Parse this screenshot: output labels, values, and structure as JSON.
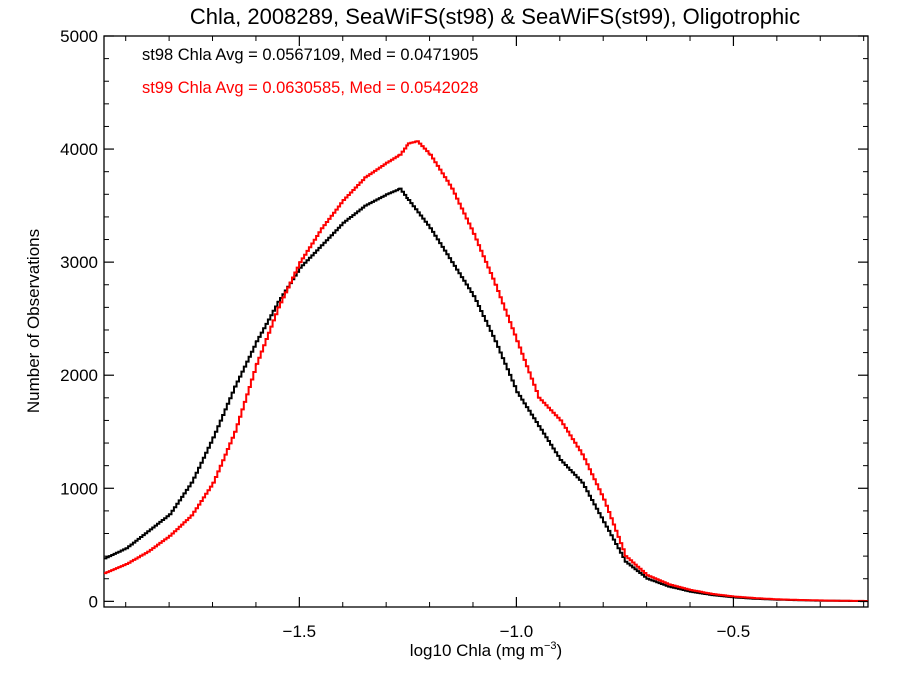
{
  "chart_data": {
    "type": "line",
    "style": "step-histogram",
    "title": "Chla, 2008289, SeaWiFS(st98) & SeaWiFS(st99), Oligotrophic",
    "xlabel": "log10 Chla (mg m",
    "xlabel_superscript": "−3",
    "xlabel_suffix": ")",
    "ylabel": "Number of Observations",
    "xlim": [
      -1.95,
      -0.19
    ],
    "ylim": [
      -50,
      5000
    ],
    "x_ticks": [
      -1.5,
      -1.0,
      -0.5
    ],
    "x_tick_labels": [
      "−1.5",
      "−1.0",
      "−0.5"
    ],
    "y_ticks": [
      0,
      1000,
      2000,
      3000,
      4000,
      5000
    ],
    "y_tick_labels": [
      "0",
      "1000",
      "2000",
      "3000",
      "4000",
      "5000"
    ],
    "grid": false,
    "annotations": [
      {
        "text": "st98 Chla Avg = 0.0567109, Med = 0.0471905",
        "color": "#000000"
      },
      {
        "text": "st99 Chla Avg = 0.0630585, Med = 0.0542028",
        "color": "#ff0000"
      }
    ],
    "series": [
      {
        "color": "#000000",
        "x": [
          -1.95,
          -1.9,
          -1.85,
          -1.8,
          -1.75,
          -1.7,
          -1.65,
          -1.6,
          -1.55,
          -1.5,
          -1.45,
          -1.4,
          -1.35,
          -1.3,
          -1.27,
          -1.25,
          -1.2,
          -1.15,
          -1.1,
          -1.05,
          -1.0,
          -0.95,
          -0.9,
          -0.85,
          -0.8,
          -0.75,
          -0.7,
          -0.65,
          -0.6,
          -0.55,
          -0.5,
          -0.45,
          -0.4,
          -0.35,
          -0.3,
          -0.25,
          -0.19
        ],
        "values": [
          380,
          470,
          620,
          770,
          1050,
          1450,
          1900,
          2300,
          2650,
          2950,
          3150,
          3350,
          3500,
          3600,
          3650,
          3550,
          3300,
          3000,
          2700,
          2300,
          1850,
          1550,
          1250,
          1050,
          700,
          350,
          200,
          130,
          85,
          55,
          35,
          22,
          15,
          10,
          6,
          4,
          2
        ]
      },
      {
        "color": "#ff0000",
        "x": [
          -1.95,
          -1.9,
          -1.85,
          -1.8,
          -1.75,
          -1.7,
          -1.65,
          -1.6,
          -1.55,
          -1.5,
          -1.45,
          -1.4,
          -1.35,
          -1.3,
          -1.27,
          -1.25,
          -1.23,
          -1.2,
          -1.15,
          -1.1,
          -1.05,
          -1.0,
          -0.95,
          -0.9,
          -0.85,
          -0.8,
          -0.75,
          -0.7,
          -0.65,
          -0.6,
          -0.55,
          -0.5,
          -0.45,
          -0.4,
          -0.35,
          -0.3,
          -0.25,
          -0.19
        ],
        "values": [
          250,
          330,
          440,
          580,
          760,
          1050,
          1500,
          2100,
          2600,
          3000,
          3300,
          3550,
          3750,
          3880,
          3950,
          4050,
          4070,
          3950,
          3650,
          3250,
          2800,
          2300,
          1800,
          1600,
          1300,
          900,
          400,
          230,
          150,
          100,
          65,
          42,
          28,
          18,
          12,
          8,
          5,
          3
        ]
      }
    ]
  }
}
